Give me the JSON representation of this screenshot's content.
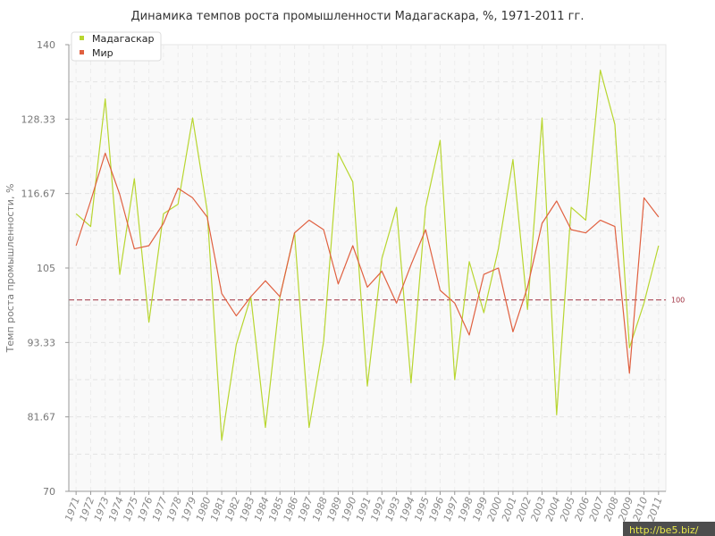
{
  "chart_data": {
    "type": "line",
    "title": "Динамика темпов роста промышленности Мадагаскара, %, 1971-2011 гг.",
    "ylabel": "Темп роста промышленности, %",
    "xlabel": "",
    "ylim": [
      70,
      140
    ],
    "yticks": [
      "70",
      "81.67",
      "93.33",
      "105",
      "116.67",
      "128.33",
      "140"
    ],
    "ytick_values": [
      70,
      81.67,
      93.33,
      105,
      116.67,
      128.33,
      140
    ],
    "x": [
      "1971",
      "1972",
      "1973",
      "1974",
      "1975",
      "1976",
      "1977",
      "1978",
      "1979",
      "1980",
      "1981",
      "1982",
      "1983",
      "1984",
      "1985",
      "1986",
      "1987",
      "1988",
      "1989",
      "1990",
      "1991",
      "1992",
      "1993",
      "1994",
      "1995",
      "1996",
      "1997",
      "1998",
      "1999",
      "2000",
      "2001",
      "2002",
      "2003",
      "2004",
      "2005",
      "2006",
      "2007",
      "2008",
      "2009",
      "2010",
      "2011"
    ],
    "grid": true,
    "legend_position": "top-left",
    "reference_line": {
      "value": 100,
      "label": "100",
      "color": "#a03040"
    },
    "series": [
      {
        "name": "Мадагаскар",
        "color": "#b8d630",
        "values": [
          113.5,
          111.5,
          131.5,
          104,
          119,
          96.5,
          113.5,
          115,
          128.5,
          114,
          78,
          93,
          100.5,
          80,
          100.5,
          110.5,
          80,
          93.5,
          123,
          118.5,
          86.5,
          106.5,
          114.5,
          87,
          114.5,
          125,
          87.5,
          106,
          98,
          108,
          122,
          98.5,
          128.5,
          82,
          114.5,
          112.5,
          136,
          127.5,
          92.5,
          99.5,
          108.5
        ]
      },
      {
        "name": "Мир",
        "color": "#e06040",
        "values": [
          108.5,
          115.5,
          123,
          116.5,
          108,
          108.5,
          112,
          117.5,
          116,
          113,
          101,
          97.5,
          100.5,
          103,
          100.5,
          110.5,
          112.5,
          111,
          102.5,
          108.5,
          102,
          104.5,
          99.5,
          105.5,
          111,
          101.5,
          99.5,
          94.5,
          104,
          105,
          95,
          102,
          112,
          115.5,
          111,
          110.5,
          112.5,
          111.5,
          88.5,
          116,
          113
        ]
      }
    ]
  },
  "watermark": "http://be5.biz/"
}
